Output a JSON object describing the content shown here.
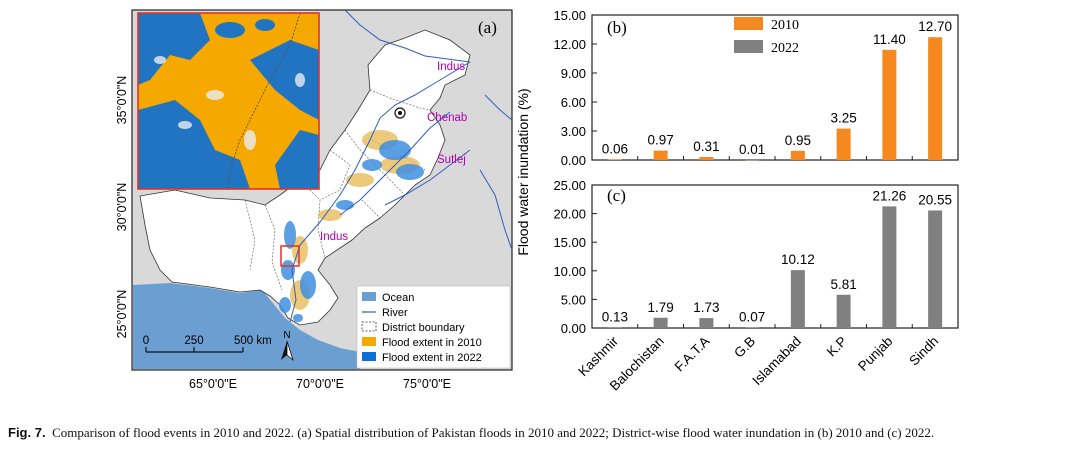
{
  "map": {
    "panel_label": "(a)",
    "lat_labels": [
      "35°0'0\"N",
      "30°0'0\"N",
      "25°0'0\"N"
    ],
    "lon_labels": [
      "65°0'0\"E",
      "70°0'0\"E",
      "75°0'0\"E"
    ],
    "rivers": [
      "Indus",
      "Chenab",
      "Sutlej",
      "Indus"
    ],
    "scale_ticks": [
      "0",
      "250",
      "500 km"
    ],
    "north": "N",
    "legend": [
      "Ocean",
      "River",
      "District boundary",
      "Flood extent in 2010",
      "Flood extent in 2022"
    ],
    "colors": {
      "ocean": "#6b9fd2",
      "flood2010": "#f5a800",
      "flood2022": "#0a6fd6",
      "land": "#ffffff",
      "background": "#d9d9d9",
      "river": "#2f5fbf",
      "inset_border": "#e0322a"
    }
  },
  "chart_data": [
    {
      "type": "bar",
      "panel": "(b)",
      "categories": [
        "Kashmir",
        "Balochistan",
        "F.A.T.A",
        "G.B",
        "Islamabad",
        "K.P",
        "Punjab",
        "Sindh"
      ],
      "series": [
        {
          "name": "2010",
          "color": "#f5891f",
          "values": [
            0.06,
            0.97,
            0.31,
            0.01,
            0.95,
            3.25,
            11.4,
            12.7
          ]
        }
      ],
      "value_labels": [
        "0.06",
        "0.97",
        "0.31",
        "0.01",
        "0.95",
        "3.25",
        "11.40",
        "12.70"
      ],
      "yticks": [
        "0.00",
        "3.00",
        "6.00",
        "9.00",
        "12.00",
        "15.00"
      ],
      "ylim": [
        0,
        15
      ]
    },
    {
      "type": "bar",
      "panel": "(c)",
      "categories": [
        "Kashmir",
        "Balochistan",
        "F.A.T.A",
        "G.B",
        "Islamabad",
        "K.P",
        "Punjab",
        "Sindh"
      ],
      "series": [
        {
          "name": "2022",
          "color": "#808080",
          "values": [
            0.13,
            1.79,
            1.73,
            0.07,
            10.12,
            5.81,
            21.26,
            20.55
          ]
        }
      ],
      "value_labels": [
        "0.13",
        "1.79",
        "1.73",
        "0.07",
        "10.12",
        "5.81",
        "21.26",
        "20.55"
      ],
      "yticks": [
        "0.00",
        "5.00",
        "10.00",
        "15.00",
        "20.00",
        "25.00"
      ],
      "ylim": [
        0,
        25
      ]
    }
  ],
  "chart_common": {
    "ylabel": "Flood water inundation (%)",
    "legend": [
      "2010",
      "2022"
    ]
  },
  "caption": {
    "label": "Fig. 7.",
    "text": "Comparison of flood events in 2010 and 2022. (a) Spatial distribution of Pakistan floods in 2010 and 2022; District-wise flood water inundation in (b) 2010 and (c) 2022."
  }
}
